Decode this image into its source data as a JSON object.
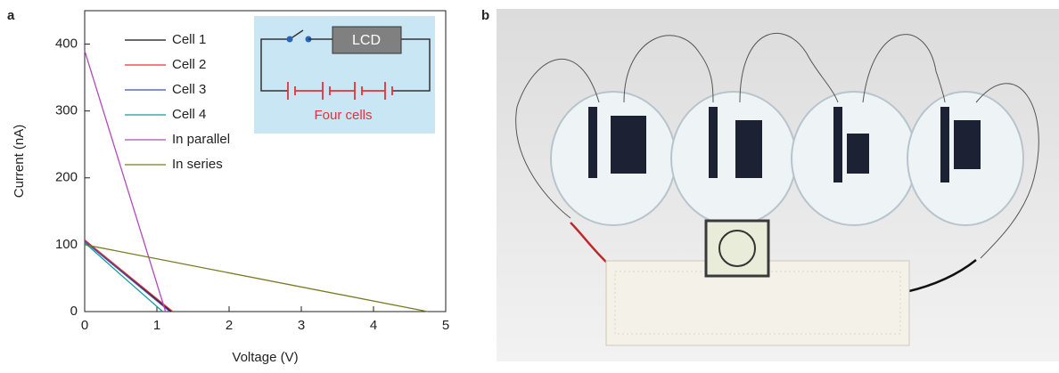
{
  "panel_labels": [
    "a",
    "b"
  ],
  "chart_data": {
    "type": "line",
    "x_label": "Voltage (V)",
    "y_label": "Current (nA)",
    "xlim": [
      0,
      5
    ],
    "ylim": [
      0,
      450
    ],
    "xticks": [
      0,
      1,
      2,
      3,
      4,
      5
    ],
    "yticks": [
      0,
      100,
      200,
      300,
      400
    ],
    "series": [
      {
        "name": "Cell 1",
        "color": "#111111",
        "x": [
          0,
          1.2
        ],
        "values": [
          107,
          0
        ]
      },
      {
        "name": "Cell 2",
        "color": "#e8303a",
        "x": [
          0,
          1.22
        ],
        "values": [
          107,
          0
        ]
      },
      {
        "name": "Cell 3",
        "color": "#3a4fb5",
        "x": [
          0,
          1.18
        ],
        "values": [
          105,
          0
        ]
      },
      {
        "name": "Cell 4",
        "color": "#1a9a9a",
        "x": [
          0,
          0.5,
          1.08
        ],
        "values": [
          103,
          55,
          0
        ]
      },
      {
        "name": "In parallel",
        "color": "#b04ab8",
        "x": [
          0,
          1.12
        ],
        "values": [
          390,
          0
        ]
      },
      {
        "name": "In series",
        "color": "#7a7a20",
        "x": [
          0,
          4.75
        ],
        "values": [
          100,
          0
        ]
      }
    ]
  },
  "inset": {
    "lcd_label": "LCD",
    "cells_label": "Four cells"
  }
}
